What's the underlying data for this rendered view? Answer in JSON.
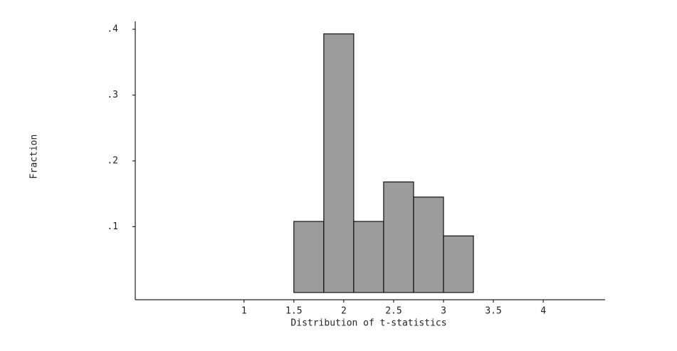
{
  "chart_data": {
    "type": "histogram",
    "x_label": "Distribution of t-statistics",
    "y_label": "Fraction",
    "bins": [
      1.5,
      1.8,
      2.1,
      2.4,
      2.7,
      3.0,
      3.3
    ],
    "values": [
      0.108,
      0.393,
      0.108,
      0.168,
      0.145,
      0.086
    ],
    "color": "#9c9c9c",
    "xlim": [
      -0.09,
      4.62
    ],
    "xticks": [
      1,
      1.5,
      2,
      2.5,
      3,
      3.5,
      4
    ],
    "ylim": [
      -0.011,
      0.412
    ],
    "yticks": [
      {
        "value": 0.1,
        "label": ".1"
      },
      {
        "value": 0.2,
        "label": ".2"
      },
      {
        "value": 0.3,
        "label": ".3"
      },
      {
        "value": 0.4,
        "label": ".4"
      }
    ]
  }
}
